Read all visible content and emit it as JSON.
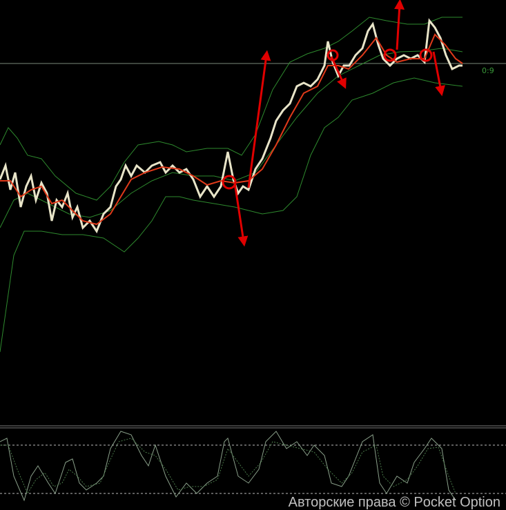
{
  "price_label": "0:9",
  "watermark": "Авторские права © Pocket Option"
}
